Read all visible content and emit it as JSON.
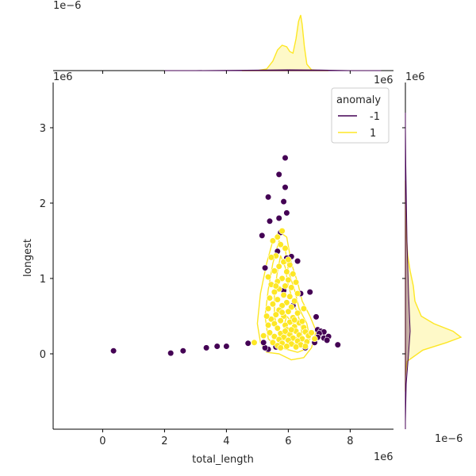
{
  "chart_data": {
    "type": "scatter",
    "title": "",
    "xlabel": "total_length",
    "ylabel": "longest",
    "xlim": [
      -1600000,
      9400000
    ],
    "ylim": [
      -1000000,
      3600000
    ],
    "x_ticks": [
      0,
      2000000,
      4000000,
      6000000,
      8000000
    ],
    "x_tick_labels": [
      "0",
      "2",
      "4",
      "6",
      "8"
    ],
    "y_ticks": [
      0,
      1000000,
      2000000,
      3000000
    ],
    "y_tick_labels": [
      "0",
      "1",
      "2",
      "3"
    ],
    "x_offset_text": "1e6",
    "y_offset_text": "1e6",
    "top_marginal_offset_text": "1e−6",
    "right_marginal_top_offset_text": "1e6",
    "right_marginal_bottom_offset_text": "1e−6",
    "legend": {
      "title": "anomaly",
      "placement": "top-right",
      "entries": [
        {
          "label": "-1",
          "color": "#440154"
        },
        {
          "label": "1",
          "color": "#fde725"
        }
      ]
    },
    "series": [
      {
        "name": "-1",
        "color": "#440154",
        "points": [
          [
            5900000,
            2600000
          ],
          [
            5700000,
            2380000
          ],
          [
            5900000,
            2210000
          ],
          [
            5350000,
            2080000
          ],
          [
            5850000,
            2020000
          ],
          [
            5950000,
            1870000
          ],
          [
            5700000,
            1800000
          ],
          [
            5400000,
            1760000
          ],
          [
            5750000,
            1610000
          ],
          [
            5150000,
            1570000
          ],
          [
            5650000,
            1360000
          ],
          [
            6100000,
            1290000
          ],
          [
            6300000,
            1230000
          ],
          [
            5250000,
            1140000
          ],
          [
            5950000,
            1270000
          ],
          [
            6400000,
            800000
          ],
          [
            5850000,
            840000
          ],
          [
            6700000,
            820000
          ],
          [
            6150000,
            640000
          ],
          [
            6900000,
            490000
          ],
          [
            6950000,
            320000
          ],
          [
            7050000,
            300000
          ],
          [
            7150000,
            290000
          ],
          [
            7000000,
            270000
          ],
          [
            6950000,
            220000
          ],
          [
            7150000,
            210000
          ],
          [
            7300000,
            230000
          ],
          [
            7250000,
            180000
          ],
          [
            6850000,
            150000
          ],
          [
            7600000,
            120000
          ],
          [
            6550000,
            80000
          ],
          [
            5350000,
            60000
          ],
          [
            5250000,
            80000
          ],
          [
            5200000,
            150000
          ],
          [
            5600000,
            90000
          ],
          [
            4700000,
            140000
          ],
          [
            4000000,
            100000
          ],
          [
            3700000,
            100000
          ],
          [
            3350000,
            80000
          ],
          [
            2600000,
            40000
          ],
          [
            2200000,
            10000
          ],
          [
            350000,
            40000
          ]
        ]
      },
      {
        "name": "1",
        "color": "#fde725",
        "points": [
          [
            5500000,
            1500000
          ],
          [
            5650000,
            1550000
          ],
          [
            5800000,
            1630000
          ],
          [
            5750000,
            1450000
          ],
          [
            5900000,
            1400000
          ],
          [
            5600000,
            1300000
          ],
          [
            5450000,
            1280000
          ],
          [
            5850000,
            1220000
          ],
          [
            6050000,
            1180000
          ],
          [
            5700000,
            1160000
          ],
          [
            5550000,
            1100000
          ],
          [
            5950000,
            1090000
          ],
          [
            6150000,
            1060000
          ],
          [
            5350000,
            1020000
          ],
          [
            5800000,
            1000000
          ],
          [
            6000000,
            980000
          ],
          [
            5650000,
            960000
          ],
          [
            6250000,
            950000
          ],
          [
            5450000,
            920000
          ],
          [
            5900000,
            900000
          ],
          [
            6100000,
            880000
          ],
          [
            5700000,
            860000
          ],
          [
            5550000,
            820000
          ],
          [
            6300000,
            800000
          ],
          [
            5850000,
            780000
          ],
          [
            6050000,
            760000
          ],
          [
            5400000,
            740000
          ],
          [
            5650000,
            720000
          ],
          [
            6200000,
            700000
          ],
          [
            5950000,
            680000
          ],
          [
            5500000,
            660000
          ],
          [
            5800000,
            640000
          ],
          [
            6100000,
            620000
          ],
          [
            5350000,
            600000
          ],
          [
            5700000,
            580000
          ],
          [
            6000000,
            560000
          ],
          [
            6300000,
            540000
          ],
          [
            5600000,
            520000
          ],
          [
            5850000,
            500000
          ],
          [
            6150000,
            480000
          ],
          [
            5450000,
            460000
          ],
          [
            5750000,
            440000
          ],
          [
            6050000,
            420000
          ],
          [
            6350000,
            410000
          ],
          [
            5550000,
            400000
          ],
          [
            5900000,
            380000
          ],
          [
            6200000,
            360000
          ],
          [
            6500000,
            350000
          ],
          [
            5650000,
            340000
          ],
          [
            5950000,
            320000
          ],
          [
            6250000,
            300000
          ],
          [
            6550000,
            290000
          ],
          [
            5400000,
            280000
          ],
          [
            5750000,
            270000
          ],
          [
            6050000,
            260000
          ],
          [
            6350000,
            250000
          ],
          [
            6650000,
            240000
          ],
          [
            5550000,
            230000
          ],
          [
            5850000,
            220000
          ],
          [
            6150000,
            210000
          ],
          [
            6450000,
            200000
          ],
          [
            5700000,
            190000
          ],
          [
            6000000,
            180000
          ],
          [
            6300000,
            170000
          ],
          [
            6600000,
            160000
          ],
          [
            5500000,
            150000
          ],
          [
            5800000,
            140000
          ],
          [
            6100000,
            130000
          ],
          [
            6400000,
            120000
          ],
          [
            5650000,
            110000
          ],
          [
            5950000,
            100000
          ],
          [
            6250000,
            90000
          ],
          [
            6550000,
            100000
          ],
          [
            5900000,
            300000
          ],
          [
            6200000,
            450000
          ],
          [
            5600000,
            900000
          ],
          [
            6000000,
            1250000
          ],
          [
            5800000,
            550000
          ],
          [
            6450000,
            430000
          ],
          [
            5350000,
            380000
          ],
          [
            6750000,
            280000
          ],
          [
            6850000,
            200000
          ],
          [
            5200000,
            240000
          ],
          [
            4900000,
            150000
          ],
          [
            5300000,
            500000
          ],
          [
            6500000,
            600000
          ],
          [
            6100000,
            320000
          ],
          [
            5750000,
            80000
          ]
        ]
      }
    ]
  }
}
